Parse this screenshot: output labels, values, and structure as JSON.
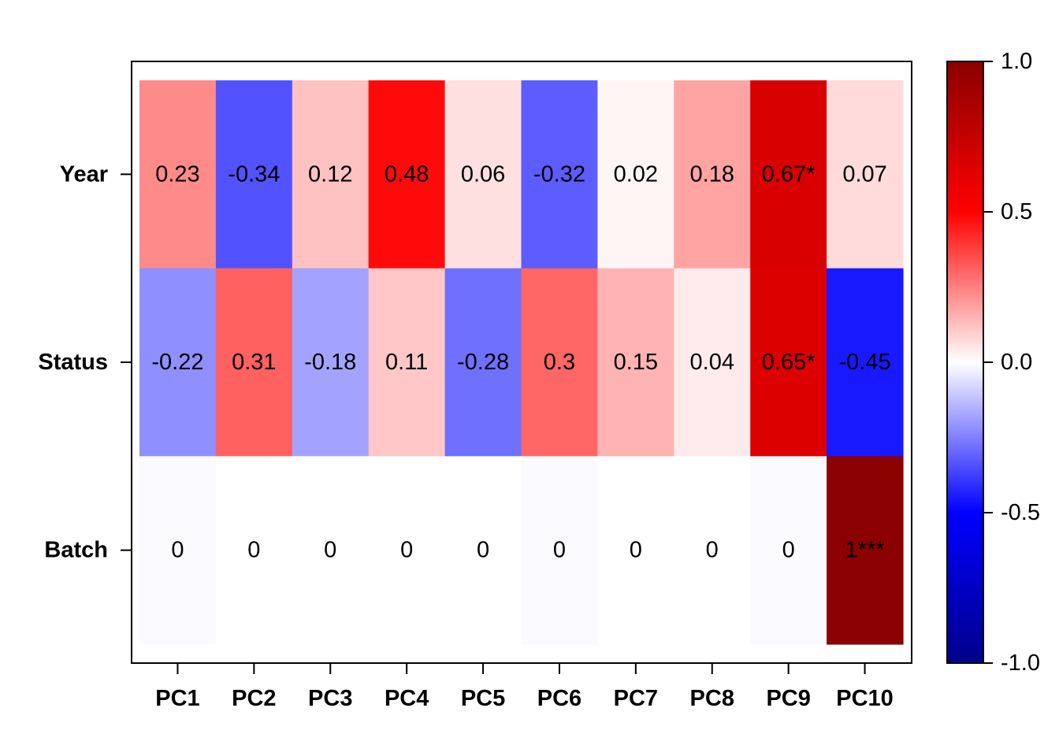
{
  "chart_data": {
    "type": "heatmap",
    "title": "",
    "xlabel": "",
    "ylabel": "",
    "columns": [
      "PC1",
      "PC2",
      "PC3",
      "PC4",
      "PC5",
      "PC6",
      "PC7",
      "PC8",
      "PC9",
      "PC10"
    ],
    "rows": [
      "Year",
      "Status",
      "Batch"
    ],
    "values": [
      [
        0.23,
        -0.34,
        0.12,
        0.48,
        0.06,
        -0.32,
        0.02,
        0.18,
        0.67,
        0.07
      ],
      [
        -0.22,
        0.31,
        -0.18,
        0.11,
        -0.28,
        0.3,
        0.15,
        0.04,
        0.65,
        -0.45
      ],
      [
        -0.01,
        0.0,
        0.0,
        0.0,
        0.0,
        -0.01,
        0.0,
        0.0,
        -0.01,
        1.0
      ]
    ],
    "cell_labels": [
      [
        "0.23",
        "-0.34",
        "0.12",
        "0.48",
        "0.06",
        "-0.32",
        "0.02",
        "0.18",
        "0.67*",
        "0.07"
      ],
      [
        "-0.22",
        "0.31",
        "-0.18",
        "0.11",
        "-0.28",
        "0.3",
        "0.15",
        "0.04",
        "0.65*",
        "-0.45"
      ],
      [
        "0",
        "0",
        "0",
        "0",
        "0",
        "0",
        "0",
        "0",
        "0",
        "1***"
      ]
    ],
    "color_scale": {
      "range": [
        -1.0,
        1.0
      ],
      "stops": [
        {
          "value": -1.0,
          "color": "#00008b"
        },
        {
          "value": -0.5,
          "color": "#0000ff"
        },
        {
          "value": 0.0,
          "color": "#ffffff"
        },
        {
          "value": 0.5,
          "color": "#ff0000"
        },
        {
          "value": 1.0,
          "color": "#8b0000"
        }
      ],
      "ticks": [
        1.0,
        0.5,
        0.0,
        -0.5,
        -1.0
      ],
      "tick_labels": [
        "1.0",
        "0.5",
        "0.0",
        "-0.5",
        "-1.0"
      ]
    },
    "legend_position": "right"
  }
}
